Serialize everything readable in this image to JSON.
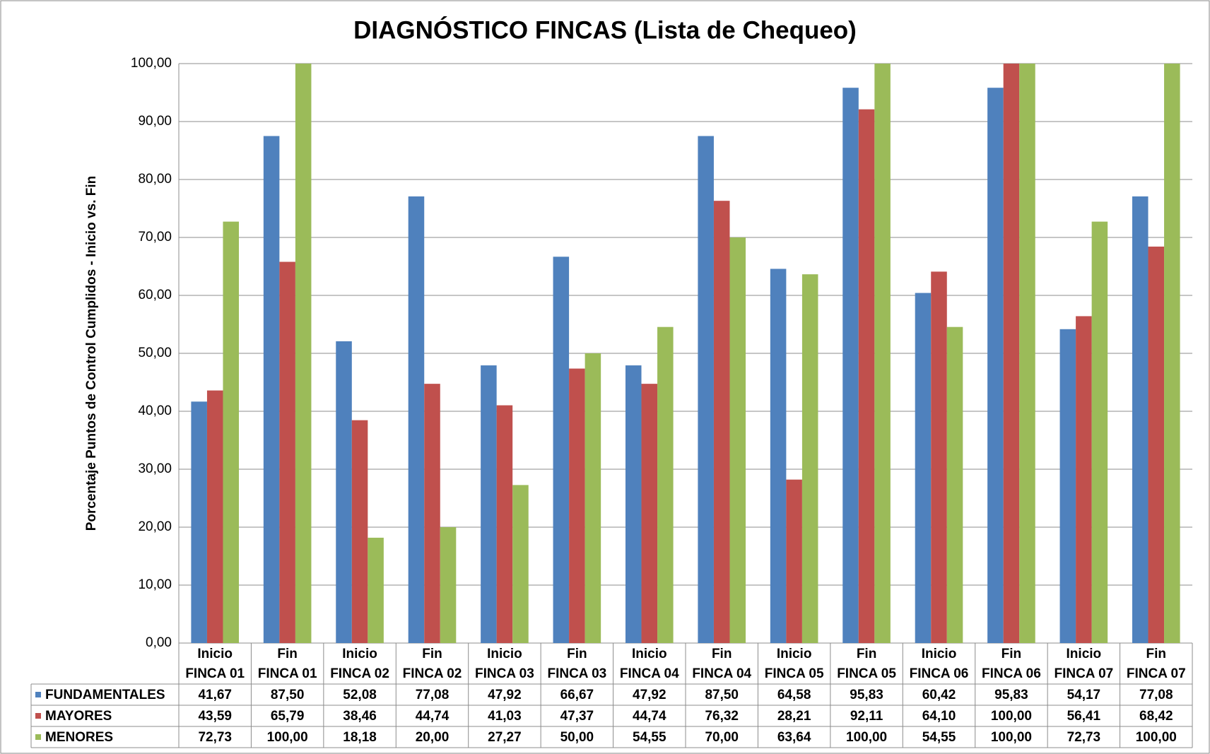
{
  "chart_data": {
    "type": "bar",
    "title": "DIAGNÓSTICO FINCAS (Lista de Chequeo)",
    "ylabel": "Porcentaje Puntos de Control Cumplidos - Inicio vs. Fin",
    "categories": [
      [
        "Inicio",
        "FINCA 01"
      ],
      [
        "Fin",
        "FINCA 01"
      ],
      [
        "Inicio",
        "FINCA 02"
      ],
      [
        "Fin",
        "FINCA 02"
      ],
      [
        "Inicio",
        "FINCA 03"
      ],
      [
        "Fin",
        "FINCA 03"
      ],
      [
        "Inicio",
        "FINCA 04"
      ],
      [
        "Fin",
        "FINCA 04"
      ],
      [
        "Inicio",
        "FINCA 05"
      ],
      [
        "Fin",
        "FINCA 05"
      ],
      [
        "Inicio",
        "FINCA 06"
      ],
      [
        "Fin",
        "FINCA 06"
      ],
      [
        "Inicio",
        "FINCA 07"
      ],
      [
        "Fin",
        "FINCA 07"
      ]
    ],
    "series": [
      {
        "name": "FUNDAMENTALES",
        "color": "#4f81bd",
        "values": [
          41.67,
          87.5,
          52.08,
          77.08,
          47.92,
          66.67,
          47.92,
          87.5,
          64.58,
          95.83,
          60.42,
          95.83,
          54.17,
          77.08
        ],
        "value_labels": [
          "41,67",
          "87,50",
          "52,08",
          "77,08",
          "47,92",
          "66,67",
          "47,92",
          "87,50",
          "64,58",
          "95,83",
          "60,42",
          "95,83",
          "54,17",
          "77,08"
        ]
      },
      {
        "name": "MAYORES",
        "color": "#c0504d",
        "values": [
          43.59,
          65.79,
          38.46,
          44.74,
          41.03,
          47.37,
          44.74,
          76.32,
          28.21,
          92.11,
          64.1,
          100,
          56.41,
          68.42
        ],
        "value_labels": [
          "43,59",
          "65,79",
          "38,46",
          "44,74",
          "41,03",
          "47,37",
          "44,74",
          "76,32",
          "28,21",
          "92,11",
          "64,10",
          "100,00",
          "56,41",
          "68,42"
        ]
      },
      {
        "name": "MENORES",
        "color": "#9bbb59",
        "values": [
          72.73,
          100,
          18.18,
          20,
          27.27,
          50,
          54.55,
          70,
          63.64,
          100,
          54.55,
          100,
          72.73,
          100
        ],
        "value_labels": [
          "72,73",
          "100,00",
          "18,18",
          "20,00",
          "27,27",
          "50,00",
          "54,55",
          "70,00",
          "63,64",
          "100,00",
          "54,55",
          "100,00",
          "72,73",
          "100,00"
        ]
      }
    ],
    "ylim": [
      0,
      100
    ],
    "yticks": [
      {
        "value": 0,
        "label": "0,00"
      },
      {
        "value": 10,
        "label": "10,00"
      },
      {
        "value": 20,
        "label": "20,00"
      },
      {
        "value": 30,
        "label": "30,00"
      },
      {
        "value": 40,
        "label": "40,00"
      },
      {
        "value": 50,
        "label": "50,00"
      },
      {
        "value": 60,
        "label": "60,00"
      },
      {
        "value": 70,
        "label": "70,00"
      },
      {
        "value": 80,
        "label": "80,00"
      },
      {
        "value": 90,
        "label": "90,00"
      },
      {
        "value": 100,
        "label": "100,00"
      }
    ],
    "grid": true
  }
}
